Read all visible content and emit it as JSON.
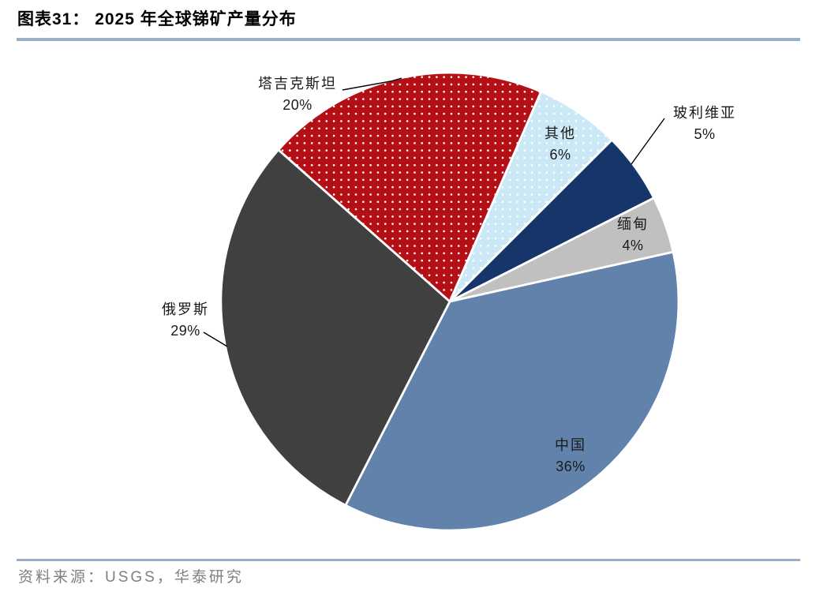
{
  "page": {
    "title": "图表31： 2025 年全球锑矿产量分布",
    "source": "资料来源：USGS，华泰研究"
  },
  "chart_data": {
    "type": "pie",
    "figure_label": "图表31",
    "title": "2025 年全球锑矿产量分布",
    "unit": "percent",
    "total": 100,
    "direction": "clockwise",
    "start_angle_deg": 23.5,
    "legend_position": "none",
    "labels_on_chart": true,
    "segments": [
      {
        "label": "其他",
        "value": 6,
        "pct_label": "6%",
        "color": "#CBE8F7",
        "pattern": "white-dots"
      },
      {
        "label": "玻利维亚",
        "value": 5,
        "pct_label": "5%",
        "color": "#16356B",
        "pattern": "solid"
      },
      {
        "label": "缅甸",
        "value": 4,
        "pct_label": "4%",
        "color": "#C0C0C0",
        "pattern": "solid"
      },
      {
        "label": "中国",
        "value": 36,
        "pct_label": "36%",
        "color": "#6182AB",
        "pattern": "solid"
      },
      {
        "label": "俄罗斯",
        "value": 29,
        "pct_label": "29%",
        "color": "#404040",
        "pattern": "solid"
      },
      {
        "label": "塔吉克斯坦",
        "value": 20,
        "pct_label": "20%",
        "color": "#B40F15",
        "pattern": "white-dots"
      }
    ]
  },
  "colors": {
    "rule": "#9AAEC6",
    "footer_text": "#7F7F7F",
    "label_text": "#1A1A1A",
    "slice_border": "#FFFFFF",
    "background": "#FFFFFF"
  }
}
